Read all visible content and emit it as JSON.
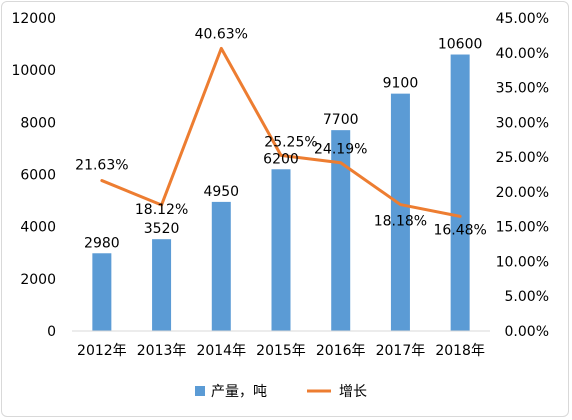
{
  "chart_data": {
    "type": "bar",
    "categories": [
      "2012年",
      "2013年",
      "2014年",
      "2015年",
      "2016年",
      "2017年",
      "2018年"
    ],
    "series": [
      {
        "name": "产量，吨",
        "type": "bar",
        "axis": "left",
        "color": "#5b9bd5",
        "values": [
          2980,
          3520,
          4950,
          6200,
          7700,
          9100,
          10600
        ],
        "labels": [
          "2980",
          "3520",
          "4950",
          "6200",
          "7700",
          "9100",
          "10600"
        ]
      },
      {
        "name": "增长",
        "type": "line",
        "axis": "right",
        "color": "#ed7d31",
        "values": [
          21.63,
          18.12,
          40.63,
          25.25,
          24.19,
          18.18,
          16.48
        ],
        "labels": [
          "21.63%",
          "18.12%",
          "40.63%",
          "25.25%",
          "24.19%",
          "18.18%",
          "16.48%"
        ]
      }
    ],
    "y_left": {
      "min": 0,
      "max": 12000,
      "step": 2000,
      "ticks": [
        "0",
        "2000",
        "4000",
        "6000",
        "8000",
        "10000",
        "12000"
      ]
    },
    "y_right": {
      "min": 0,
      "max": 45,
      "step": 5,
      "ticks": [
        "0.00%",
        "5.00%",
        "10.00%",
        "15.00%",
        "20.00%",
        "25.00%",
        "30.00%",
        "35.00%",
        "40.00%",
        "45.00%"
      ]
    },
    "legend_position": "bottom",
    "grid": false
  }
}
